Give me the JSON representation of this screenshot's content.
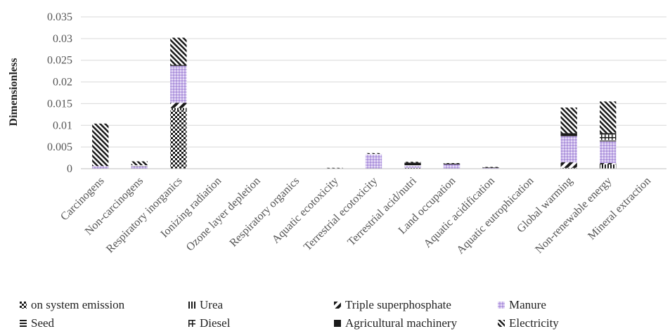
{
  "chart_data": {
    "type": "bar",
    "stacked": true,
    "ylabel": "Dimensionless",
    "ylim": [
      0,
      0.035
    ],
    "yticks": [
      "0",
      "0.005",
      "0.01",
      "0.015",
      "0.02",
      "0.025",
      "0.03",
      "0.035"
    ],
    "grid": true,
    "legend_position": "bottom",
    "categories": [
      "Carcinogens",
      "Non-carcinogens",
      "Respiratory inorganics",
      "Ionizing radiation",
      "Ozone layer depletion",
      "Respiratory organics",
      "Aquatic ecotoxicity",
      "Terrestrial ecotoxicity",
      "Terrestrial acid/nutri",
      "Land occupation",
      "Aquatic acidification",
      "Aquatic eutrophication",
      "Global warming",
      "Non-renewable energy",
      "Mineral extraction"
    ],
    "series": [
      {
        "name": "on system emission",
        "color": "#1a1a1a",
        "pattern": "checker",
        "values": [
          0,
          0,
          0.0135,
          0,
          0,
          0,
          0,
          0,
          0,
          0,
          0,
          0,
          0,
          0,
          0
        ]
      },
      {
        "name": "Urea",
        "color": "#1a1a1a",
        "pattern": "vertical",
        "values": [
          0,
          0,
          0.0005,
          0,
          0,
          0,
          0,
          0,
          0.0002,
          0,
          0,
          0,
          0.0002,
          0.001,
          0
        ]
      },
      {
        "name": "Triple superphosphate",
        "color": "#1a1a1a",
        "pattern": "diagonal-wide",
        "values": [
          0,
          0,
          0.0012,
          0,
          0,
          0,
          0,
          0,
          0,
          0,
          0,
          0,
          0.0013,
          0.0003,
          0
        ]
      },
      {
        "name": "Manure",
        "color": "#b8a0e0",
        "pattern": "dots",
        "values": [
          0.0006,
          0.0006,
          0.0085,
          0,
          0,
          0,
          0.0001,
          0.0033,
          0.0005,
          0.001,
          0.0002,
          0,
          0.006,
          0.005,
          0
        ]
      },
      {
        "name": "Seed",
        "color": "#1a1a1a",
        "pattern": "horizontal",
        "values": [
          0,
          0.0002,
          0.0002,
          0,
          0,
          0,
          0,
          0.0001,
          0.0001,
          0.0001,
          0,
          0,
          0.0002,
          0.0003,
          0
        ]
      },
      {
        "name": "Diesel",
        "color": "#1a1a1a",
        "pattern": "cross",
        "values": [
          0,
          0,
          0,
          0,
          0,
          0,
          0,
          0,
          0,
          0,
          0,
          0,
          0,
          0.0013,
          0
        ]
      },
      {
        "name": "Agricultural machinery",
        "color": "#1a1a1a",
        "pattern": "solid",
        "values": [
          0,
          0,
          0,
          0,
          0,
          0,
          0,
          0,
          0.0006,
          0.0001,
          0.0001,
          0,
          0.0005,
          0.0003,
          0
        ]
      },
      {
        "name": "Electricity",
        "color": "#1a1a1a",
        "pattern": "diagonal",
        "values": [
          0.0098,
          0.0009,
          0.0063,
          0,
          0,
          0,
          0.0001,
          0.0002,
          0.0002,
          0.0001,
          0.0001,
          0,
          0.0059,
          0.0073,
          0
        ]
      }
    ]
  }
}
